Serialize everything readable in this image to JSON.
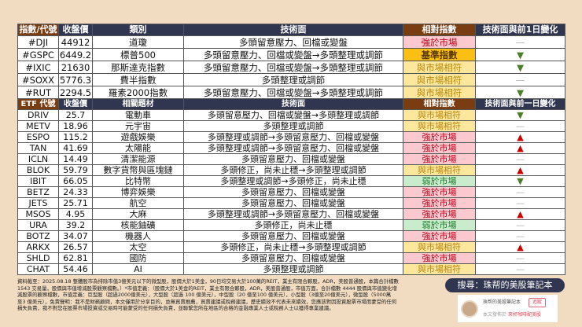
{
  "index_table": {
    "headers": [
      "指數/代號",
      "收盤價",
      "類別",
      "技術面",
      "相對指數",
      "技術面與前1日變化"
    ],
    "rows": [
      {
        "code": "#DJI",
        "close": "44912",
        "category": "道瓊",
        "tech": "多頭留意壓力、回檔或變盤",
        "relative": "強於市場",
        "rel_type": "strong",
        "change": "flat"
      },
      {
        "code": "#GSPC",
        "close": "6449.2",
        "category": "標普500",
        "tech": "多頭留意壓力、回檔或變盤→多頭整理或調節",
        "relative": "基準指數",
        "rel_type": "bench",
        "change": "down"
      },
      {
        "code": "#IXIC",
        "close": "21630",
        "category": "那斯達克指數",
        "tech": "多頭留意壓力、回檔或變盤→多頭整理或調節",
        "relative": "與市場相符",
        "rel_type": "match",
        "change": "down"
      },
      {
        "code": "#SOXX",
        "close": "5776.3",
        "category": "費半指數",
        "tech": "多頭整理或調節",
        "relative": "與市場相符",
        "rel_type": "match",
        "change": "flat"
      },
      {
        "code": "#RUT",
        "close": "2294.5",
        "category": "羅素2000指數",
        "tech": "多頭留意壓力、回檔或變盤→多頭整理或調節",
        "relative": "與市場相符",
        "rel_type": "match",
        "change": "down"
      }
    ]
  },
  "etf_table": {
    "headers": [
      "ETF 代號",
      "收盤價",
      "相關題材",
      "技術面",
      "相對指數",
      "技術面與前一日變化"
    ],
    "rows": [
      {
        "code": "DRIV",
        "close": "25.7",
        "category": "電動車",
        "tech": "多頭留意壓力、回檔或變盤→多頭整理或調節",
        "relative": "與市場相符",
        "rel_type": "match",
        "change": "down"
      },
      {
        "code": "METV",
        "close": "18.96",
        "category": "元宇宙",
        "tech": "多頭整理或調節",
        "relative": "與市場相符",
        "rel_type": "match",
        "change": "flat"
      },
      {
        "code": "ESPO",
        "close": "115.2",
        "category": "遊戲娛樂",
        "tech": "多頭整理或調節→多頭留意壓力、回檔或變盤",
        "relative": "強於市場",
        "rel_type": "strong",
        "change": "up"
      },
      {
        "code": "TAN",
        "close": "41.69",
        "category": "太陽能",
        "tech": "多頭整理或調節→多頭留意壓力、回檔或變盤",
        "relative": "強於市場",
        "rel_type": "strong",
        "change": "up"
      },
      {
        "code": "ICLN",
        "close": "14.49",
        "category": "清潔能源",
        "tech": "多頭留意壓力、回檔或變盤",
        "relative": "強於市場",
        "rel_type": "strong",
        "change": "flat"
      },
      {
        "code": "BLOK",
        "close": "59.79",
        "category": "數字貨幣與區塊鏈",
        "tech": "多頭修正，尚未止穩→多頭整理或調節",
        "relative": "與市場相符",
        "rel_type": "match",
        "change": "up"
      },
      {
        "code": "IBIT",
        "close": "66.05",
        "category": "比特幣",
        "tech": "多頭整理或調節→多頭修正，尚未止穩",
        "relative": "弱於市場",
        "rel_type": "weak",
        "change": "down"
      },
      {
        "code": "BETZ",
        "close": "24.33",
        "category": "博弈娛樂",
        "tech": "多頭留意壓力、回檔或變盤",
        "relative": "強於市場",
        "rel_type": "strong",
        "change": "flat"
      },
      {
        "code": "JETS",
        "close": "25.71",
        "category": "航空",
        "tech": "多頭留意壓力、回檔或變盤",
        "relative": "強於市場",
        "rel_type": "strong",
        "change": "flat"
      },
      {
        "code": "MSOS",
        "close": "4.95",
        "category": "大麻",
        "tech": "多頭整理或調節→多頭留意壓力、回檔或變盤",
        "relative": "強於市場",
        "rel_type": "strong",
        "change": "up"
      },
      {
        "code": "URA",
        "close": "39.2",
        "category": "核能鈾礦",
        "tech": "多頭修正，尚未止穩",
        "relative": "弱於市場",
        "rel_type": "weak",
        "change": "flat"
      },
      {
        "code": "BOTZ",
        "close": "34.07",
        "category": "機器人",
        "tech": "多頭留意壓力、回檔或變盤",
        "relative": "強於市場",
        "rel_type": "strong",
        "change": "flat"
      },
      {
        "code": "ARKX",
        "close": "26.57",
        "category": "太空",
        "tech": "多頭修正，尚未止穩→多頭整理或調節",
        "relative": "與市場相符",
        "rel_type": "match",
        "change": "up"
      },
      {
        "code": "SHLD",
        "close": "62.81",
        "category": "國防",
        "tech": "多頭留意壓力、回檔或變盤",
        "relative": "強於市場",
        "rel_type": "strong",
        "change": "flat"
      },
      {
        "code": "CHAT",
        "close": "54.46",
        "category": "AI",
        "tech": "多頭整理或調節",
        "relative": "與市場相符",
        "rel_type": "match",
        "change": "flat"
      }
    ]
  },
  "change_symbols": {
    "up": "▲",
    "down": "▼",
    "flat": "—"
  },
  "colors": {
    "header": "#303650",
    "header_brown": "#7a3d12",
    "strong": "#fcc9cf",
    "match": "#fde79c",
    "weak": "#c9eccd",
    "bench": "#fbbf14",
    "up": "#cc0000",
    "down": "#4f7a28",
    "background": "#f1dbc1"
  },
  "footnote": [
    "資料截至：2025.08.18 整體股市為排除市值3億美元以下的微型股，股價大於1美金，90日均交易大於100萬的REIT，業主有限合夥股，ADR，美股普通股，本篇合計檔數",
    "1543 交易量，股價與市值增減股票觀察檔數。）*市值定義：（股價大於1美金的REIT，業主有限合夥股，ADR，美股普通股，市值方面，合計檔數 4444 股價與市值變化增",
    "減股票的觀察檔數，市值定義：巨型股（超過2000億美元），大型股（超過 100 億美元），中型股（20 億至100 億美元），小型股（3億至20億美元），微型股（5000萬",
    "至3 億美元），免責聲明：我不是財務顧問，本文僅用於分享目的，並無買賣推薦，買賣建議或稅務建議，歷史績效不代表未來績效，您應該對因投資股票市場而蒙受的任何",
    "損失負責，我不對您在股票市場投資或交易時可能蒙受的任何損失負責，並聯繫您所在地區的合格的金融專業人士或稅務人士以獲得專業建議。"
  ],
  "search_pill": "搜尋：珠帮的美股筆記本",
  "author_card": {
    "name": "珠帮的美股筆記本",
    "follow": "追蹤",
    "published_prefix": "本文發佈於",
    "publication": "來杯咖啡配美股"
  }
}
